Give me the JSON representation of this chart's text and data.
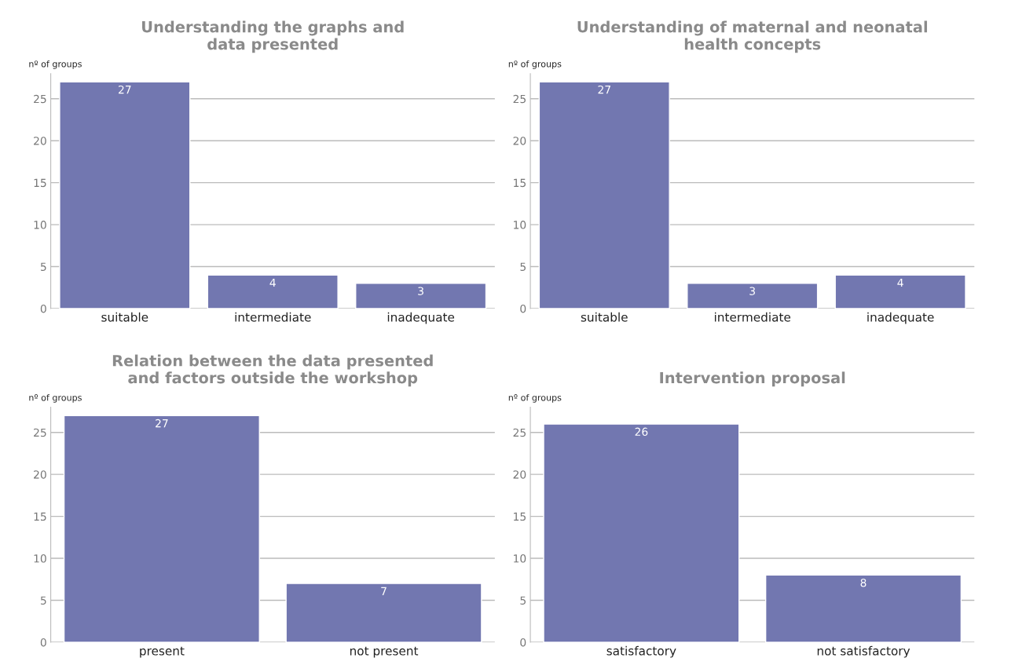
{
  "chart_data": [
    {
      "type": "bar",
      "title": "Understanding the graphs and\ndata presented",
      "ylabel": "nº of groups",
      "categories": [
        "suitable",
        "intermediate",
        "inadequate"
      ],
      "values": [
        27,
        4,
        3
      ],
      "color": "#7277b0",
      "ylim": [
        0,
        28
      ],
      "yticks": [
        0,
        5,
        10,
        15,
        20,
        25
      ],
      "grid": "y",
      "data_labels": true
    },
    {
      "type": "bar",
      "title": "Understanding of maternal and neonatal\nhealth concepts",
      "ylabel": "nº of groups",
      "categories": [
        "suitable",
        "intermediate",
        "inadequate"
      ],
      "values": [
        27,
        3,
        4
      ],
      "color": "#7277b0",
      "ylim": [
        0,
        28
      ],
      "yticks": [
        0,
        5,
        10,
        15,
        20,
        25
      ],
      "grid": "y",
      "data_labels": true
    },
    {
      "type": "bar",
      "title": "Relation between the data presented\nand factors outside the workshop",
      "ylabel": "nº of groups",
      "categories": [
        "present",
        "not present"
      ],
      "values": [
        27,
        7
      ],
      "color": "#7277b0",
      "ylim": [
        0,
        28
      ],
      "yticks": [
        0,
        5,
        10,
        15,
        20,
        25
      ],
      "grid": "y",
      "data_labels": true
    },
    {
      "type": "bar",
      "title": "Intervention proposal",
      "ylabel": "nº of groups",
      "categories": [
        "satisfactory",
        "not satisfactory"
      ],
      "values": [
        26,
        8
      ],
      "color": "#7277b0",
      "ylim": [
        0,
        28
      ],
      "yticks": [
        0,
        5,
        10,
        15,
        20,
        25
      ],
      "grid": "y",
      "data_labels": true
    }
  ]
}
